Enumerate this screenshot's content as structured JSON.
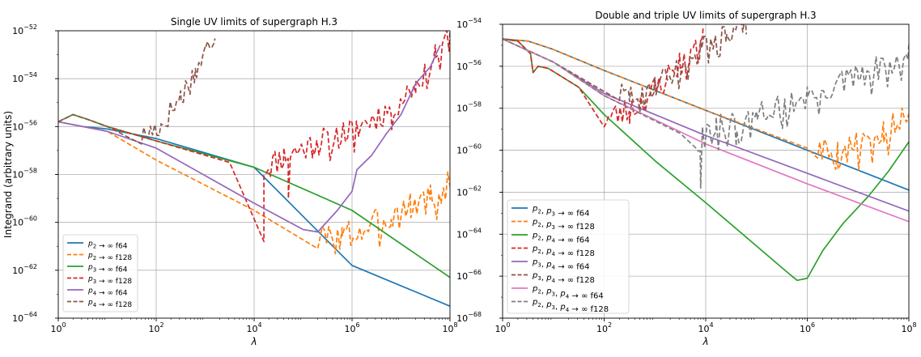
{
  "figure": {
    "background": "#ffffff"
  },
  "chart_data": [
    {
      "type": "line",
      "title": "Single UV limits of supergraph H.3",
      "xlabel": "λ",
      "ylabel": "Integrand (arbitrary units)",
      "xscale": "log",
      "yscale": "log",
      "xlim_exp": [
        0,
        8
      ],
      "ylim_exp": [
        -64,
        -52
      ],
      "xticks": [
        {
          "exp": 0,
          "label": "0"
        },
        {
          "exp": 2,
          "label": "2"
        },
        {
          "exp": 4,
          "label": "4"
        },
        {
          "exp": 6,
          "label": "6"
        },
        {
          "exp": 8,
          "label": "8"
        }
      ],
      "yticks": [
        {
          "exp": -64,
          "label": "−64"
        },
        {
          "exp": -62,
          "label": "−62"
        },
        {
          "exp": -60,
          "label": "−60"
        },
        {
          "exp": -58,
          "label": "−58"
        },
        {
          "exp": -56,
          "label": "−56"
        },
        {
          "exp": -54,
          "label": "−54"
        },
        {
          "exp": -52,
          "label": "−52"
        }
      ],
      "grid": true,
      "legend_position": "bottom-left",
      "series": [
        {
          "base": "p",
          "sub": "2",
          "suffix": "→ ∞ f64",
          "color": "#1f77b4",
          "dash": "solid",
          "points": [
            [
              0,
              -55.8
            ],
            [
              0.5,
              -56
            ],
            [
              1.0,
              -56.1
            ],
            [
              2,
              -56.5
            ],
            [
              4,
              -57.7
            ],
            [
              6,
              -61.8
            ],
            [
              8,
              -63.5
            ]
          ]
        },
        {
          "base": "p",
          "sub": "2",
          "suffix": "→ ∞ f128",
          "color": "#ff7f0e",
          "dash": "dashed",
          "points": [
            [
              0,
              -55.8
            ],
            [
              1,
              -56.2
            ],
            [
              2,
              -57.4
            ],
            [
              4,
              -59.5
            ],
            [
              5.3,
              -60.8
            ],
            [
              5.8,
              -60.7
            ],
            [
              6.2,
              -60.4
            ],
            [
              6.8,
              -59.8
            ],
            [
              7.2,
              -59.4
            ],
            [
              7.6,
              -59
            ],
            [
              8,
              -58.5
            ]
          ],
          "noise": [
            [
              5.3,
              8.0,
              0.7,
              3
            ]
          ]
        },
        {
          "base": "p",
          "sub": "3",
          "suffix": "→ ∞ f64",
          "color": "#2ca02c",
          "dash": "solid",
          "points": [
            [
              0,
              -55.8
            ],
            [
              0.3,
              -55.5
            ],
            [
              0.6,
              -55.7
            ],
            [
              1.0,
              -56.0
            ],
            [
              2,
              -56.6
            ],
            [
              4,
              -57.7
            ],
            [
              6,
              -59.5
            ],
            [
              8,
              -62.3
            ]
          ]
        },
        {
          "base": "p",
          "sub": "3",
          "suffix": "→ ∞ f128",
          "color": "#d62728",
          "dash": "dashed",
          "points": [
            [
              0,
              -55.8
            ],
            [
              0.3,
              -55.5
            ],
            [
              0.6,
              -55.7
            ],
            [
              1,
              -56
            ],
            [
              2,
              -56.6
            ],
            [
              3.5,
              -57.5
            ],
            [
              4.2,
              -57.8
            ],
            [
              4.6,
              -57.3
            ],
            [
              5.2,
              -56.8
            ],
            [
              6,
              -56.2
            ],
            [
              6.8,
              -55.3
            ],
            [
              7.3,
              -54.3
            ],
            [
              7.7,
              -53
            ],
            [
              8,
              -52.3
            ]
          ],
          "noise": [
            [
              4.2,
              8.0,
              0.6,
              11
            ]
          ],
          "spikes": [
            [
              4.2,
              -60.8
            ],
            [
              4.7,
              -59.0
            ]
          ]
        },
        {
          "base": "p",
          "sub": "4",
          "suffix": "→ ∞ f64",
          "color": "#9467bd",
          "dash": "solid",
          "points": [
            [
              0,
              -55.8
            ],
            [
              1,
              -56.2
            ],
            [
              2,
              -56.9
            ],
            [
              4,
              -59.2
            ],
            [
              5.0,
              -60.3
            ],
            [
              5.3,
              -60.4
            ],
            [
              5.7,
              -59.5
            ],
            [
              6.0,
              -58.7
            ],
            [
              6.1,
              -57.8
            ],
            [
              6.4,
              -57.2
            ],
            [
              6.7,
              -56.3
            ],
            [
              7.0,
              -55.5
            ],
            [
              7.3,
              -54.2
            ],
            [
              7.6,
              -53.5
            ],
            [
              7.8,
              -52.6
            ]
          ]
        },
        {
          "base": "p",
          "sub": "4",
          "suffix": "→ ∞ f128",
          "color": "#8c564b",
          "dash": "dashed",
          "points": [
            [
              0,
              -55.8
            ],
            [
              0.3,
              -55.5
            ],
            [
              0.6,
              -55.7
            ],
            [
              1,
              -56
            ],
            [
              1.7,
              -56.5
            ],
            [
              2.1,
              -56
            ],
            [
              2.5,
              -54.8
            ],
            [
              2.8,
              -53.8
            ],
            [
              3.0,
              -53.0
            ],
            [
              3.2,
              -52.1
            ]
          ],
          "noise": [
            [
              1.7,
              3.2,
              0.55,
              17
            ]
          ]
        }
      ]
    },
    {
      "type": "line",
      "title": "Double and triple UV limits of supergraph H.3",
      "xlabel": "λ",
      "ylabel": "",
      "xscale": "log",
      "yscale": "log",
      "xlim_exp": [
        0,
        8
      ],
      "ylim_exp": [
        -68,
        -54
      ],
      "xticks": [
        {
          "exp": 0,
          "label": "0"
        },
        {
          "exp": 2,
          "label": "2"
        },
        {
          "exp": 4,
          "label": "4"
        },
        {
          "exp": 6,
          "label": "6"
        },
        {
          "exp": 8,
          "label": "8"
        }
      ],
      "yticks": [
        {
          "exp": -68,
          "label": "−68"
        },
        {
          "exp": -66,
          "label": "−66"
        },
        {
          "exp": -64,
          "label": "−64"
        },
        {
          "exp": -62,
          "label": "−62"
        },
        {
          "exp": -60,
          "label": "−60"
        },
        {
          "exp": -58,
          "label": "−58"
        },
        {
          "exp": -56,
          "label": "−56"
        },
        {
          "exp": -54,
          "label": "−54"
        }
      ],
      "grid": true,
      "legend_position": "bottom-left",
      "series": [
        {
          "base": "p",
          "sub": "2, p3",
          "label_parts": [
            [
              "p",
              "2"
            ],
            [
              "p",
              "3"
            ]
          ],
          "suffix": "→ ∞ f64",
          "color": "#1f77b4",
          "dash": "solid",
          "points": [
            [
              0,
              -54.7
            ],
            [
              0.5,
              -54.8
            ],
            [
              1,
              -55.2
            ],
            [
              2,
              -56.2
            ],
            [
              4,
              -58.1
            ],
            [
              6,
              -60.0
            ],
            [
              8,
              -61.9
            ]
          ]
        },
        {
          "label_parts": [
            [
              "p",
              "2"
            ],
            [
              "p",
              "3"
            ]
          ],
          "suffix": "→ ∞ f128",
          "color": "#ff7f0e",
          "dash": "dashed",
          "points": [
            [
              0,
              -54.7
            ],
            [
              0.5,
              -54.8
            ],
            [
              1,
              -55.2
            ],
            [
              2,
              -56.2
            ],
            [
              4,
              -58.1
            ],
            [
              6,
              -59.9
            ],
            [
              6.6,
              -60.3
            ],
            [
              7.0,
              -59.8
            ],
            [
              7.5,
              -59.2
            ],
            [
              8,
              -58.5
            ]
          ],
          "noise": [
            [
              6.2,
              8.0,
              0.8,
              5
            ]
          ]
        },
        {
          "label_parts": [
            [
              "p",
              "2"
            ],
            [
              "p",
              "4"
            ]
          ],
          "suffix": "→ ∞ f64",
          "color": "#2ca02c",
          "dash": "solid",
          "points": [
            [
              0,
              -54.7
            ],
            [
              0.3,
              -54.8
            ],
            [
              0.55,
              -55.4
            ],
            [
              0.6,
              -56.3
            ],
            [
              0.7,
              -56.0
            ],
            [
              0.9,
              -56.1
            ],
            [
              1.5,
              -57.0
            ],
            [
              2,
              -58.3
            ],
            [
              3,
              -60.5
            ],
            [
              4,
              -62.5
            ],
            [
              5.6,
              -65.8
            ],
            [
              5.8,
              -66.2
            ],
            [
              6.0,
              -66.1
            ],
            [
              6.3,
              -64.8
            ],
            [
              6.7,
              -63.5
            ],
            [
              7.2,
              -62.2
            ],
            [
              7.6,
              -61.0
            ],
            [
              8.0,
              -59.6
            ]
          ]
        },
        {
          "label_parts": [
            [
              "p",
              "2"
            ],
            [
              "p",
              "4"
            ]
          ],
          "suffix": "→ ∞ f128",
          "color": "#d62728",
          "dash": "dashed",
          "points": [
            [
              0,
              -54.7
            ],
            [
              0.3,
              -54.8
            ],
            [
              0.55,
              -55.4
            ],
            [
              0.6,
              -56.3
            ],
            [
              0.7,
              -56.0
            ],
            [
              0.9,
              -56.1
            ],
            [
              1.5,
              -57.0
            ],
            [
              2.0,
              -58.6
            ],
            [
              2.5,
              -58.2
            ],
            [
              3.0,
              -57.2
            ],
            [
              3.5,
              -55.9
            ],
            [
              3.8,
              -55.0
            ],
            [
              3.95,
              -54.2
            ]
          ],
          "noise": [
            [
              2.0,
              3.95,
              0.7,
              23
            ]
          ]
        },
        {
          "label_parts": [
            [
              "p",
              "3"
            ],
            [
              "p",
              "4"
            ]
          ],
          "suffix": "→ ∞ f64",
          "color": "#9467bd",
          "dash": "solid",
          "points": [
            [
              0,
              -54.7
            ],
            [
              1,
              -55.8
            ],
            [
              2,
              -57.3
            ],
            [
              4,
              -59.3
            ],
            [
              6,
              -61.1
            ],
            [
              8,
              -62.9
            ]
          ]
        },
        {
          "label_parts": [
            [
              "p",
              "3"
            ],
            [
              "p",
              "4"
            ]
          ],
          "suffix": "→ ∞ f128",
          "color": "#8c564b",
          "dash": "dashed",
          "points": [
            [
              0,
              -54.7
            ],
            [
              1,
              -55.8
            ],
            [
              2,
              -57.2
            ],
            [
              2.5,
              -57.5
            ],
            [
              3.0,
              -56.9
            ],
            [
              3.5,
              -56.1
            ],
            [
              3.9,
              -55.2
            ],
            [
              4.4,
              -54.4
            ],
            [
              4.8,
              -54.0
            ]
          ],
          "noise": [
            [
              2.3,
              4.8,
              0.6,
              29
            ]
          ]
        },
        {
          "label_parts": [
            [
              "p",
              "2"
            ],
            [
              "p",
              "3"
            ],
            [
              "p",
              "4"
            ]
          ],
          "suffix": "→ ∞ f64",
          "color": "#e377c2",
          "dash": "solid",
          "points": [
            [
              0,
              -54.7
            ],
            [
              1,
              -55.8
            ],
            [
              2,
              -57.4
            ],
            [
              4,
              -59.7
            ],
            [
              6,
              -61.6
            ],
            [
              8,
              -63.4
            ]
          ]
        },
        {
          "label_parts": [
            [
              "p",
              "2"
            ],
            [
              "p",
              "3"
            ],
            [
              "p",
              "4"
            ]
          ],
          "suffix": "→ ∞ f128",
          "color": "#7f7f7f",
          "dash": "dashed",
          "points": [
            [
              0,
              -54.7
            ],
            [
              1,
              -55.8
            ],
            [
              2,
              -57.4
            ],
            [
              3.5,
              -59.2
            ],
            [
              3.8,
              -59.6
            ],
            [
              4.2,
              -59.0
            ],
            [
              5,
              -58.3
            ],
            [
              6,
              -57.5
            ],
            [
              7,
              -56.6
            ],
            [
              8,
              -55.5
            ]
          ],
          "noise": [
            [
              3.8,
              8.0,
              0.7,
              31
            ]
          ],
          "spikes": [
            [
              3.9,
              -61.8
            ],
            [
              4.6,
              -59.8
            ]
          ]
        }
      ]
    }
  ]
}
